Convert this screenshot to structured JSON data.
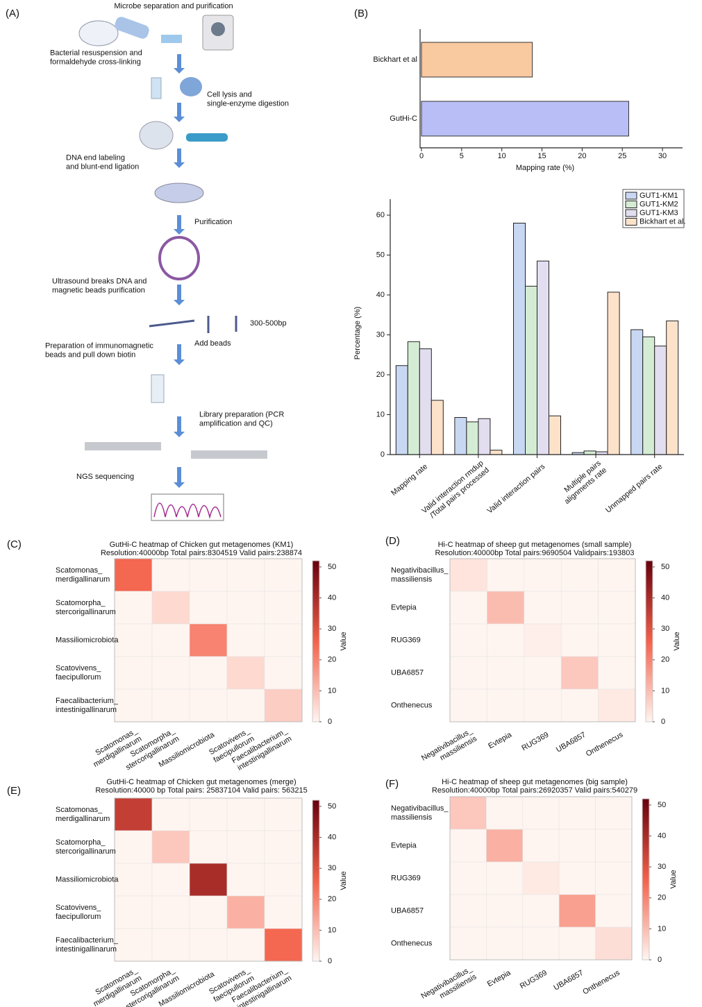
{
  "workflow": {
    "panel": "(A)",
    "steps": [
      "Microbe separation and purification",
      "Bacterial resuspension and\nformaldehyde cross-linking",
      "Cell lysis and\nsingle-enzyme digestion",
      "DNA end labeling\nand blunt-end ligation",
      "Purification",
      "Ultrasound breaks DNA and\nmagnetic beads purification",
      "Add beads",
      "300-500bp",
      "Preparation of immunomagnetic\nbeads and pull down biotin",
      "Library preparation (PCR\namplification and QC)",
      "NGS sequencing"
    ]
  },
  "chart_data": [
    {
      "type": "hbar",
      "panel": "(B)",
      "xlabel": "Mapping rate (%)",
      "categories": [
        "Bickhart et al",
        "GutHi-C"
      ],
      "values": [
        13.8,
        25.8
      ],
      "colors": [
        "#f9c9a0",
        "#b9bff6"
      ],
      "xlim": [
        0,
        32.5
      ],
      "xticks": [
        0,
        5,
        10,
        15,
        20,
        25,
        30
      ]
    },
    {
      "type": "grouped_bar",
      "ylabel": "Percentage (%)",
      "categories": [
        "Mapping rate",
        "Valid interaction rmdup\n/Total pairs processed",
        "Valid interaction pairs",
        "Multiple pairs\nalignments rate",
        "Unmapped pairs rate"
      ],
      "series": [
        {
          "name": "GUT1-KM1",
          "color": "#c8d8f2",
          "values": [
            22.3,
            9.3,
            58.0,
            0.5,
            31.3
          ]
        },
        {
          "name": "GUT1-KM2",
          "color": "#d4ecd4",
          "values": [
            28.3,
            8.2,
            42.2,
            0.9,
            29.5
          ]
        },
        {
          "name": "GUT1-KM3",
          "color": "#e2def0",
          "values": [
            26.5,
            9.0,
            48.5,
            0.7,
            27.2
          ]
        },
        {
          "name": "Bickhart et al.",
          "color": "#fde2ca",
          "values": [
            13.6,
            1.1,
            9.7,
            40.7,
            33.5
          ]
        }
      ],
      "ylim": [
        0,
        64
      ],
      "yticks": [
        0,
        10,
        20,
        30,
        40,
        50,
        60
      ],
      "legend": "top-right"
    },
    {
      "type": "heatmap",
      "panel": "(C)",
      "title": "GutHi-C heatmap of Chicken gut metagenomes (KM1)",
      "subtitle": "Resolution:40000bp  Total pairs:8304519  Valid pairs:238874",
      "categories": [
        "Scatomonas_\nmerdigallinarum",
        "Scatomorpha_\nstercorigallinarum",
        "Massiliomicrobiota",
        "Scatovivens_\nfaecipullorum",
        "Faecalibacterium_\nintestinigallinarum"
      ],
      "values": [
        [
          25,
          0,
          0,
          0,
          0
        ],
        [
          0,
          5,
          0,
          0,
          0
        ],
        [
          0,
          0,
          20,
          0,
          0
        ],
        [
          0,
          0,
          0,
          5,
          0
        ],
        [
          0,
          0,
          0,
          0,
          7
        ]
      ],
      "zlim": [
        0,
        52
      ],
      "zticks": [
        0,
        10,
        20,
        30,
        40,
        50
      ],
      "zlabel": "Value"
    },
    {
      "type": "heatmap",
      "panel": "(D)",
      "title": "Hi-C heatmap of sheep gut metagenomes (small sample)",
      "subtitle": "Resolution:40000bp  Total pairs:9690504  Validpairs:193803",
      "categories": [
        "Negativibacillus_\nmassiliensis",
        "Evtepia",
        "RUG369",
        "UBA6857",
        "Onthenecus"
      ],
      "values": [
        [
          3,
          0,
          0,
          0,
          0
        ],
        [
          0,
          10,
          0,
          0,
          0
        ],
        [
          0,
          0,
          1,
          0,
          0
        ],
        [
          0,
          0,
          0,
          8,
          0
        ],
        [
          0,
          0,
          0,
          0,
          2
        ]
      ],
      "zlim": [
        0,
        52
      ],
      "zticks": [
        0,
        10,
        20,
        30,
        40,
        50
      ],
      "zlabel": "Value"
    },
    {
      "type": "heatmap",
      "panel": "(E)",
      "title": "GutHi-C heatmap of Chicken gut metagenomes (merge)",
      "subtitle": "Resolution:40000 bp  Total pairs: 25837104  Valid pairs: 563215",
      "categories": [
        "Scatomonas_\nmerdigallinarum",
        "Scatomorpha_\nstercorigallinarum",
        "Massiliomicrobiota",
        "Scatovivens_\nfaecipullorum",
        "Faecalibacterium_\nintestinigallinarum"
      ],
      "values": [
        [
          35,
          0,
          0,
          0,
          0
        ],
        [
          0,
          8,
          0,
          0,
          0
        ],
        [
          0,
          0,
          40,
          0,
          0
        ],
        [
          0,
          0,
          0,
          12,
          0
        ],
        [
          0,
          0,
          0,
          0,
          25
        ]
      ],
      "zlim": [
        0,
        52
      ],
      "zticks": [
        0,
        10,
        20,
        30,
        40,
        50
      ],
      "zlabel": "Value"
    },
    {
      "type": "heatmap",
      "panel": "(F)",
      "title": "Hi-C heatmap of sheep gut metagenomes (big sample)",
      "subtitle": "Resolution:40000bp Total pairs:26920357  Valid pairs:540279",
      "categories": [
        "Negativibacillus_\nmassiliensis",
        "Evtepia",
        "RUG369",
        "UBA6857",
        "Onthenecus"
      ],
      "values": [
        [
          8,
          0,
          0,
          0,
          0
        ],
        [
          0,
          12,
          0,
          0,
          0
        ],
        [
          0,
          0,
          2,
          0,
          0
        ],
        [
          0,
          0,
          0,
          15,
          0
        ],
        [
          0,
          0,
          0,
          0,
          4
        ]
      ],
      "zlim": [
        0,
        52
      ],
      "zticks": [
        0,
        10,
        20,
        30,
        40,
        50
      ],
      "zlabel": "Value"
    }
  ]
}
